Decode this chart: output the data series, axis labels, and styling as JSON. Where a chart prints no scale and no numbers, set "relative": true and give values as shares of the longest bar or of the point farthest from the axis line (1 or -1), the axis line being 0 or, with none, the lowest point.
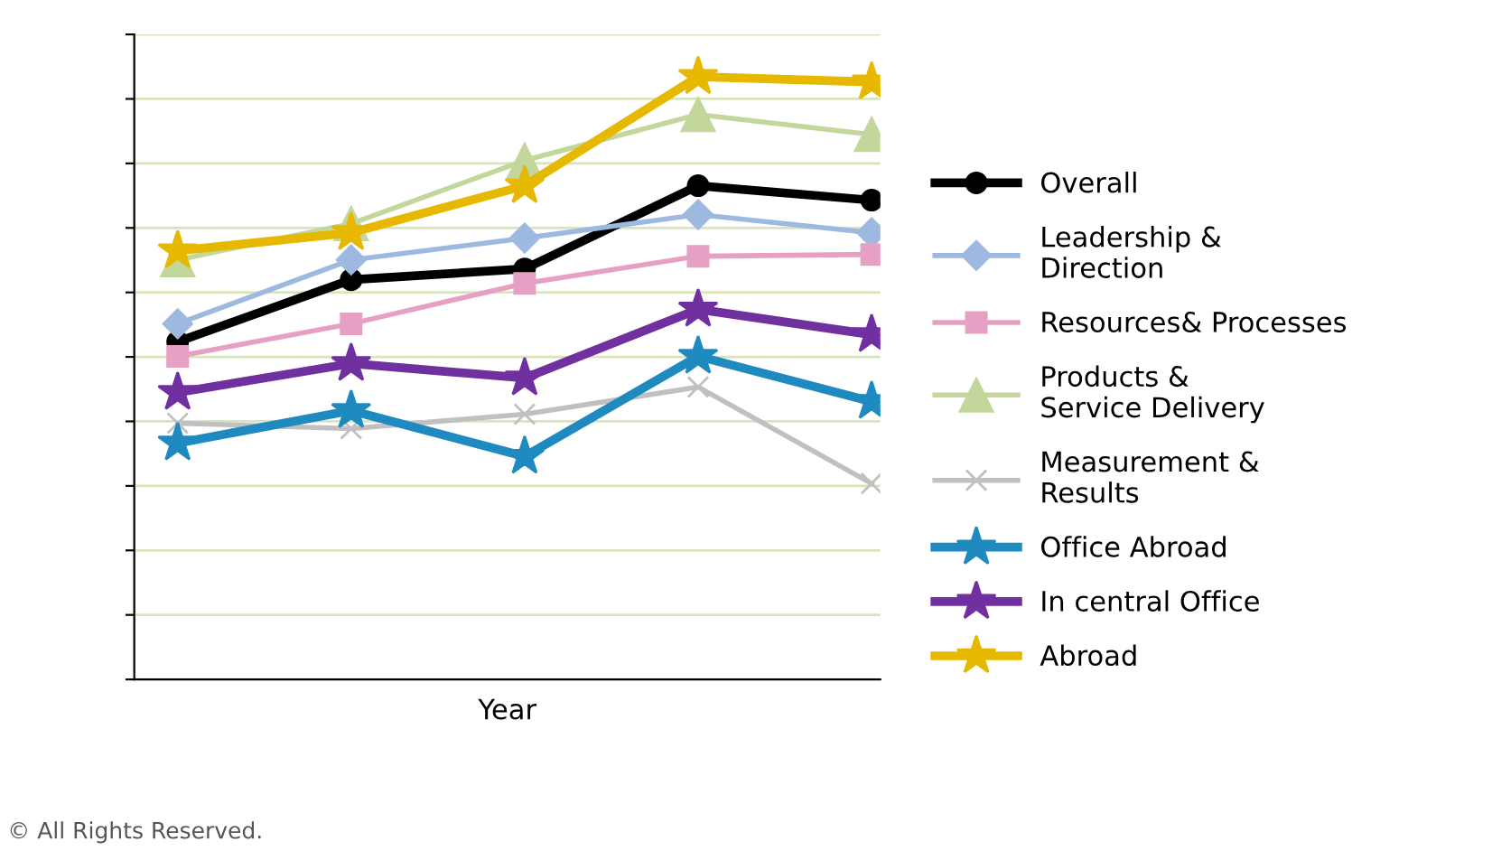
{
  "chart_data": {
    "type": "line",
    "relative": true,
    "xlabel": "Year",
    "categories": [
      null,
      null,
      null,
      null,
      null
    ],
    "grid": "y",
    "legend": "right",
    "line_style": "solid",
    "annotations": [
      "© All Rights Reserved."
    ],
    "series": [
      {
        "name": "Overall",
        "color": "#000000",
        "marker": "circle",
        "values": [
          0.56,
          0.663,
          0.681,
          0.819,
          0.795
        ]
      },
      {
        "name": "Leadership & Direction",
        "color": "#9db9e0",
        "marker": "diamond",
        "values": [
          0.59,
          0.696,
          0.732,
          0.771,
          0.741
        ]
      },
      {
        "name": "Resources& Processes",
        "color": "#e6a0c4",
        "marker": "square",
        "values": [
          0.536,
          0.59,
          0.657,
          0.702,
          0.705
        ]
      },
      {
        "name": "Products & Service Delivery",
        "color": "#c3d69b",
        "marker": "triangle",
        "values": [
          0.696,
          0.756,
          0.861,
          0.937,
          0.904
        ]
      },
      {
        "name": "Measurement & Results",
        "color": "#c0c0c0",
        "marker": "cross",
        "values": [
          0.425,
          0.416,
          0.44,
          0.485,
          0.325
        ]
      },
      {
        "name": "Office Abroad",
        "color": "#1f8ac0",
        "marker": "star",
        "values": [
          0.392,
          0.446,
          0.37,
          0.536,
          0.461
        ]
      },
      {
        "name": "In central Office",
        "color": "#7030a0",
        "marker": "star",
        "values": [
          0.476,
          0.524,
          0.5,
          0.614,
          0.572
        ]
      },
      {
        "name": "Abroad",
        "color": "#e6b800",
        "marker": "star",
        "values": [
          0.711,
          0.741,
          0.819,
          1,
          0.991
        ]
      }
    ]
  }
}
